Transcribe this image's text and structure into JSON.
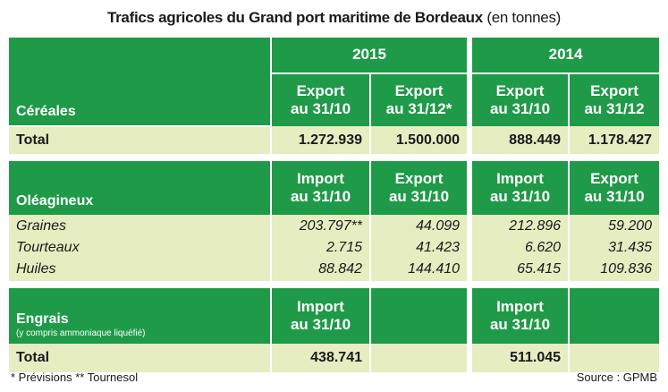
{
  "title": "Trafics agricoles du Grand port maritime de Bordeaux",
  "title_unit": "(en tonnes)",
  "years": [
    "2015",
    "2014"
  ],
  "cereales": {
    "label": "Céréales",
    "cols": [
      "Export\nau 31/10",
      "Export\nau 31/12*",
      "Export\nau 31/10",
      "Export\nau 31/12"
    ],
    "total_label": "Total",
    "total": [
      "1.272.939",
      "1.500.000",
      "888.449",
      "1.178.427"
    ]
  },
  "oleagineux": {
    "label": "Oléagineux",
    "cols": [
      "Import\nau 31/10",
      "Export\nau 31/10",
      "Import\nau 31/10",
      "Export\nau 31/10"
    ],
    "rows": [
      {
        "label": "Graines",
        "values": [
          "203.797**",
          "44.099",
          "212.896",
          "59.200"
        ]
      },
      {
        "label": "Tourteaux",
        "values": [
          "2.715",
          "41.423",
          "6.620",
          "31.435"
        ]
      },
      {
        "label": "Huiles",
        "values": [
          "88.842",
          "144.410",
          "65.415",
          "109.836"
        ]
      }
    ]
  },
  "engrais": {
    "label": "Engrais",
    "sublabel": "(y compris ammoniaque liquéfié)",
    "cols": [
      "Import\nau 31/10",
      "",
      "Import\nau 31/10",
      ""
    ],
    "total_label": "Total",
    "total": [
      "438.741",
      "",
      "511.045",
      ""
    ]
  },
  "footnote": "* Prévisions ** Tournesol",
  "source": "Source : GPMB"
}
